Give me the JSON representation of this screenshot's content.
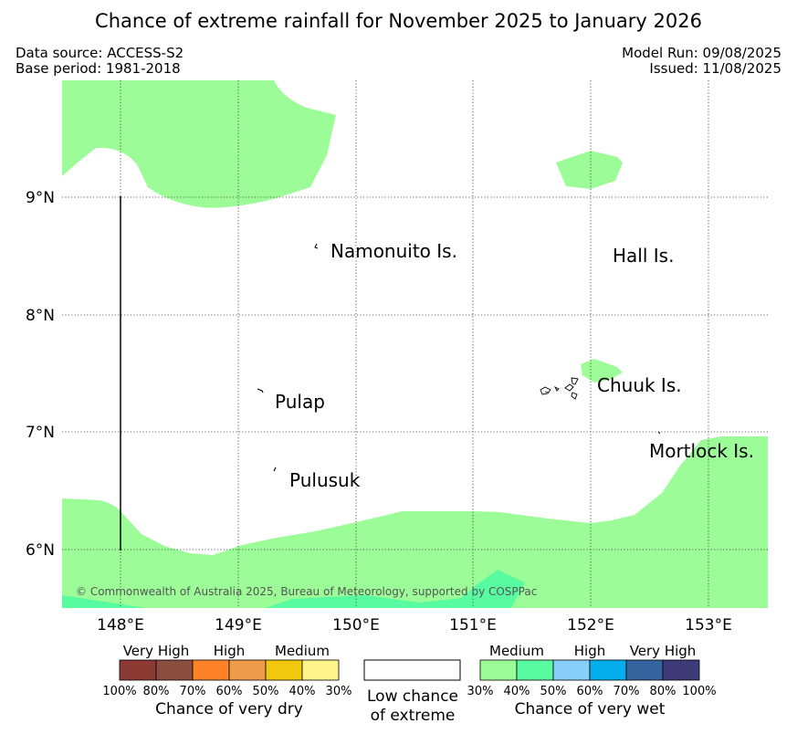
{
  "title": "Chance of extreme rainfall for November 2025 to January 2026",
  "data_source": "Data source: ACCESS-S2",
  "base_period": "Base period: 1981-2018",
  "model_run": "Model Run: 09/08/2025",
  "issued": "Issued: 11/08/2025",
  "map": {
    "lat_labels": [
      "9°N",
      "8°N",
      "7°N",
      "6°N"
    ],
    "lon_labels": [
      "148°E",
      "149°E",
      "150°E",
      "151°E",
      "152°E",
      "153°E"
    ],
    "places": [
      "Namonuito Is.",
      "Hall Is.",
      "Chuuk Is.",
      "Pulap",
      "Mortlock Is.",
      "Pulusuk"
    ],
    "copyright": "© Commonwealth of Australia 2025, Bureau of Meteorology, supported by COSPPac",
    "colors": {
      "wet_medium": "#9cfc98",
      "wet_medium_high": "#59fba1"
    }
  },
  "legend": {
    "dry": {
      "headers": [
        "Very High",
        "High",
        "Medium"
      ],
      "colors": [
        "#8b3a34",
        "#8c4e3f",
        "#fe8228",
        "#ee9b4c",
        "#f2c80d",
        "#fdf48c"
      ],
      "ticks": [
        "100%",
        "80%",
        "70%",
        "60%",
        "50%",
        "40%",
        "30%"
      ],
      "caption": "Chance of very dry"
    },
    "neutral": {
      "color": "#ffffff",
      "caption_line1": "Low chance",
      "caption_line2": "of extreme"
    },
    "wet": {
      "headers": [
        "Medium",
        "High",
        "Very High"
      ],
      "colors": [
        "#9cfc98",
        "#59fba1",
        "#87cefa",
        "#04aeea",
        "#36649f",
        "#3e3b78"
      ],
      "ticks": [
        "30%",
        "40%",
        "50%",
        "60%",
        "70%",
        "80%",
        "100%"
      ],
      "caption": "Chance of very wet"
    }
  }
}
